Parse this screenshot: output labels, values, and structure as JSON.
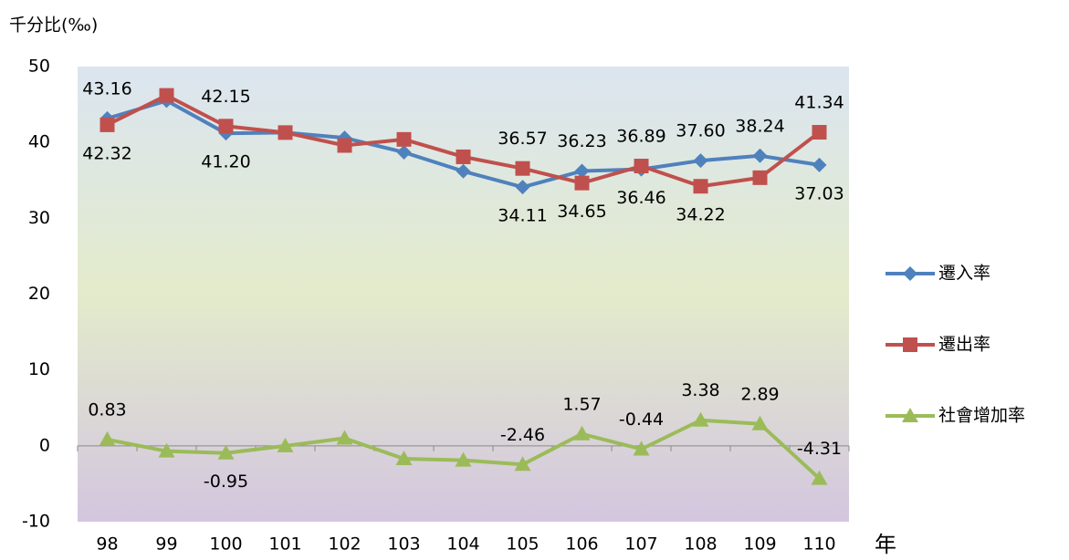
{
  "chart_data": {
    "type": "line",
    "y_axis_label": "千分比(‰)",
    "x_axis_label": "年",
    "categories": [
      "98",
      "99",
      "100",
      "101",
      "102",
      "103",
      "104",
      "105",
      "106",
      "107",
      "108",
      "109",
      "110"
    ],
    "ylim": [
      -10,
      50
    ],
    "yticks": [
      -10,
      0,
      10,
      20,
      30,
      40,
      50
    ],
    "series": [
      {
        "name": "遷入率",
        "color": "#4f81bd",
        "marker": "diamond",
        "values": [
          43.16,
          45.5,
          41.2,
          41.3,
          40.6,
          38.7,
          36.2,
          34.11,
          36.23,
          36.46,
          37.6,
          38.24,
          37.03
        ],
        "value_labels": [
          "43.16",
          null,
          "41.20",
          null,
          null,
          null,
          null,
          "34.11",
          "36.23",
          "36.46",
          "37.60",
          "38.24",
          "37.03"
        ]
      },
      {
        "name": "遷出率",
        "color": "#c0504d",
        "marker": "square",
        "values": [
          42.32,
          46.2,
          42.15,
          41.3,
          39.6,
          40.4,
          38.1,
          36.57,
          34.65,
          36.89,
          34.22,
          35.35,
          41.34
        ],
        "value_labels": [
          "42.32",
          null,
          "42.15",
          null,
          null,
          null,
          null,
          "36.57",
          "34.65",
          "36.89",
          "34.22",
          null,
          "41.34"
        ]
      },
      {
        "name": "社會增加率",
        "color": "#9bbb59",
        "marker": "triangle",
        "values": [
          0.83,
          -0.7,
          -0.95,
          0.0,
          1.0,
          -1.7,
          -1.9,
          -2.46,
          1.57,
          -0.44,
          3.38,
          2.89,
          -4.31
        ],
        "value_labels": [
          "0.83",
          null,
          "-0.95",
          null,
          null,
          null,
          null,
          "-2.46",
          "1.57",
          "-0.44",
          "3.38",
          "2.89",
          "-4.31"
        ]
      }
    ],
    "legend": "right"
  }
}
